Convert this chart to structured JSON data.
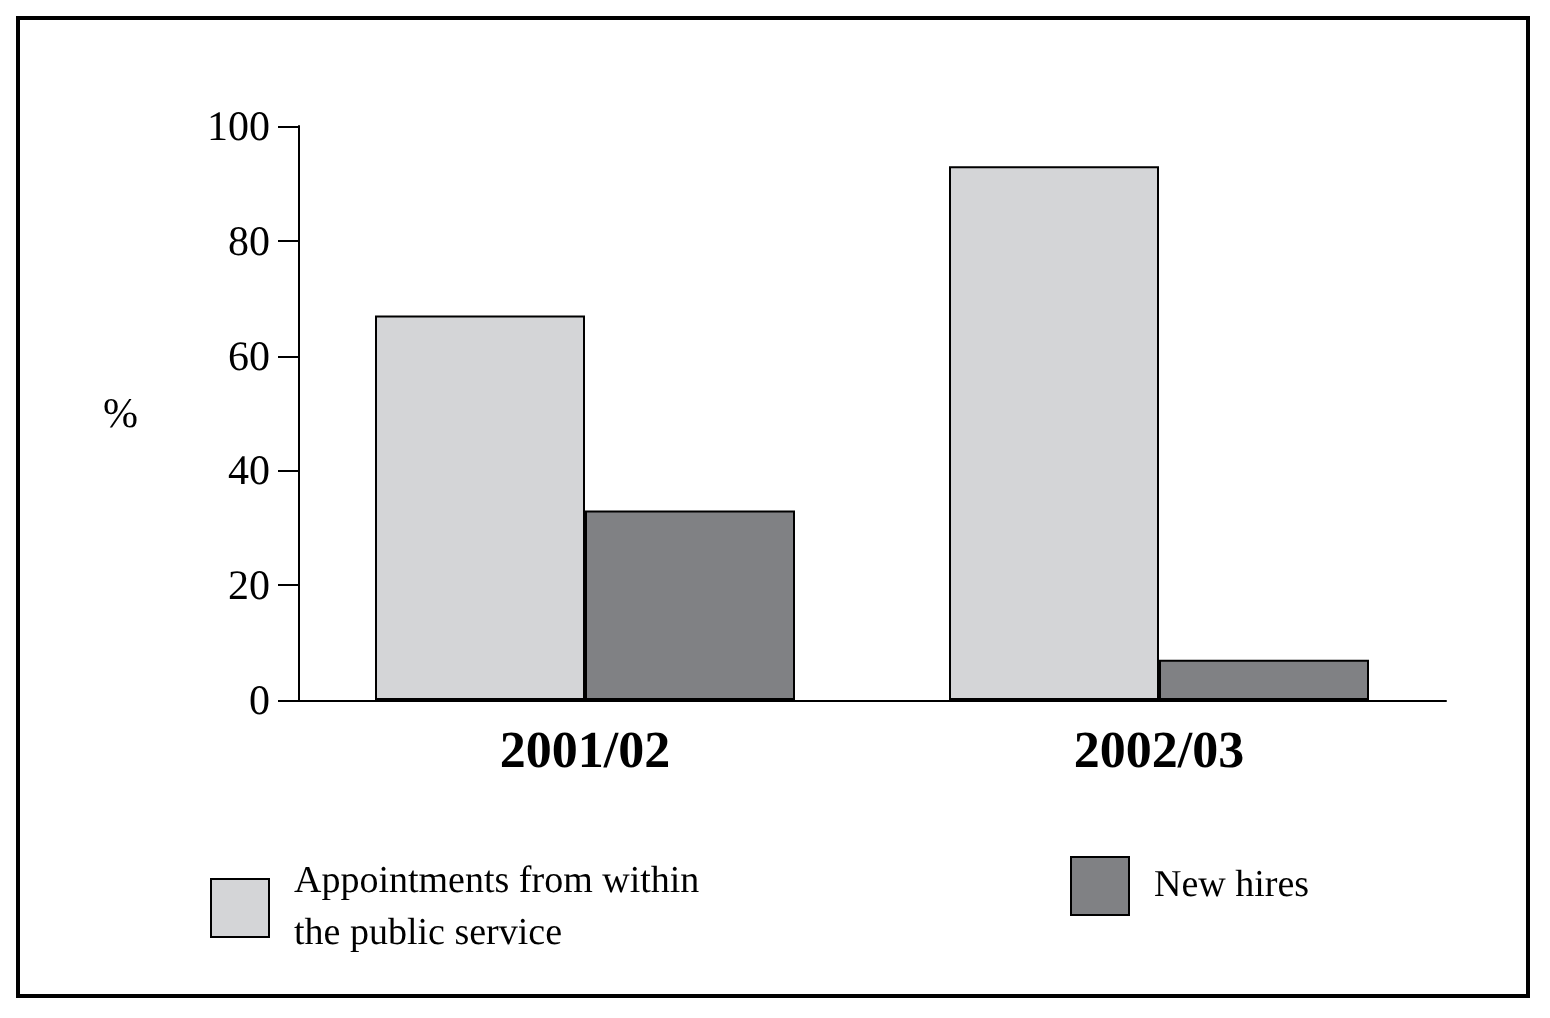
{
  "chart_data": {
    "type": "bar",
    "categories": [
      "2001/02",
      "2002/03"
    ],
    "ylabel": "%",
    "ylim": [
      0,
      100
    ],
    "yticks": [
      0,
      20,
      40,
      60,
      80,
      100
    ],
    "grid": false,
    "legend": "bottom",
    "series": [
      {
        "name": "Appointments from within the public service",
        "color": "#d4d5d7",
        "values": [
          67,
          93
        ]
      },
      {
        "name": "New hires",
        "color": "#808184",
        "values": [
          33,
          7
        ]
      }
    ]
  }
}
